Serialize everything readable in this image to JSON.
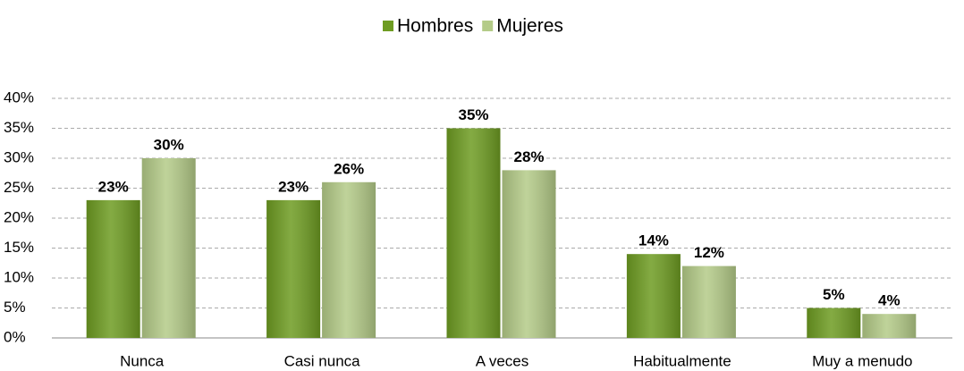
{
  "chart_data": {
    "type": "bar",
    "categories": [
      "Nunca",
      "Casi nunca",
      "A veces",
      "Habitualmente",
      "Muy a menudo"
    ],
    "series": [
      {
        "name": "Hombres",
        "color": "#6e9c22",
        "values": [
          23,
          23,
          35,
          14,
          5
        ],
        "value_labels": [
          "23%",
          "23%",
          "35%",
          "14%",
          "5%"
        ]
      },
      {
        "name": "Mujeres",
        "color": "#b4cb88",
        "values": [
          30,
          26,
          28,
          12,
          4
        ],
        "value_labels": [
          "30%",
          "26%",
          "28%",
          "12%",
          "4%"
        ]
      }
    ],
    "ylim": [
      0,
      40
    ],
    "yticks": [
      {
        "value": 0,
        "label": "0%"
      },
      {
        "value": 5,
        "label": "5%"
      },
      {
        "value": 10,
        "label": "10%"
      },
      {
        "value": 15,
        "label": "15%"
      },
      {
        "value": 20,
        "label": "20%"
      },
      {
        "value": 25,
        "label": "25%"
      },
      {
        "value": 30,
        "label": "30%"
      },
      {
        "value": 35,
        "label": "35%"
      },
      {
        "value": 40,
        "label": "40%"
      }
    ],
    "grid": true,
    "legend": "top"
  }
}
